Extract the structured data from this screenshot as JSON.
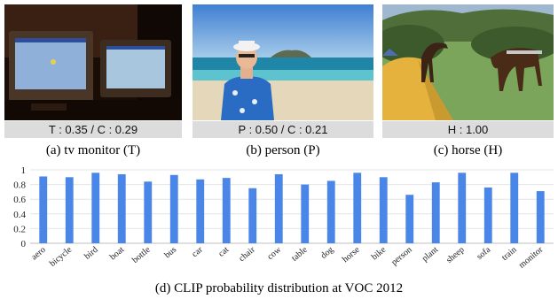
{
  "panels": [
    {
      "score": "T : 0.35 / C : 0.29",
      "caption": "(a) tv monitor (T)"
    },
    {
      "score": "P : 0.50 / C : 0.21",
      "caption": "(b) person (P)"
    },
    {
      "score": "H : 1.00",
      "caption": "(c) horse (H)"
    }
  ],
  "figure_caption": "(d) CLIP probability distribution at VOC 2012",
  "chart_data": {
    "type": "bar",
    "categories": [
      "aero",
      "bicycle",
      "bird",
      "boat",
      "bottle",
      "bus",
      "car",
      "cat",
      "chair",
      "cow",
      "table",
      "dog",
      "horse",
      "bike",
      "person",
      "plant",
      "sheep",
      "sofa",
      "train",
      "monitor"
    ],
    "values": [
      0.91,
      0.9,
      0.96,
      0.94,
      0.84,
      0.93,
      0.87,
      0.89,
      0.75,
      0.94,
      0.8,
      0.85,
      0.96,
      0.9,
      0.66,
      0.83,
      0.96,
      0.76,
      0.96,
      0.71
    ],
    "ylim": [
      0,
      1
    ],
    "yticks": [
      "0",
      "0.2",
      "0.4",
      "0.6",
      "0.8",
      "1"
    ],
    "grid": true,
    "bar_color": "#4a86e8"
  }
}
